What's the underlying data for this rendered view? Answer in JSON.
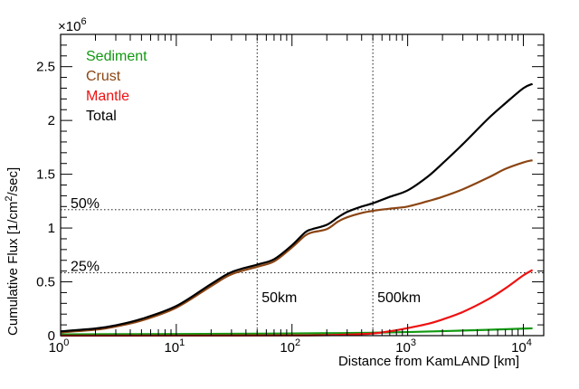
{
  "chart_data": {
    "type": "line",
    "title": "",
    "xlabel": "Distance from KamLAND [km]",
    "ylabel": "Cumulative Flux [1/cm²/sec]",
    "ylabel_main": "Cumulative Flux [1/cm",
    "ylabel_sup": "2",
    "ylabel_end": "/sec]",
    "y_multiplier": {
      "base": "×10",
      "exp": "6"
    },
    "x_scale": "log",
    "xlim": [
      1,
      15000
    ],
    "ylim": [
      0,
      2.8
    ],
    "x_ticks": [
      {
        "value": 1,
        "base": "10",
        "exp": "0"
      },
      {
        "value": 10,
        "base": "10",
        "exp": "1"
      },
      {
        "value": 100,
        "base": "10",
        "exp": "2"
      },
      {
        "value": 1000,
        "base": "10",
        "exp": "3"
      },
      {
        "value": 10000,
        "base": "10",
        "exp": "4"
      }
    ],
    "y_ticks": [
      {
        "value": 0,
        "label": "0"
      },
      {
        "value": 0.5,
        "label": "0.5"
      },
      {
        "value": 1,
        "label": "1"
      },
      {
        "value": 1.5,
        "label": "1.5"
      },
      {
        "value": 2,
        "label": "2"
      },
      {
        "value": 2.5,
        "label": "2.5"
      }
    ],
    "legend_position": "top-left",
    "series": [
      {
        "name": "Sediment",
        "color": "#119911",
        "x": [
          1,
          10,
          50,
          100,
          300,
          500,
          1000,
          3000,
          10000,
          12000
        ],
        "y": [
          0.012,
          0.015,
          0.018,
          0.02,
          0.024,
          0.027,
          0.033,
          0.047,
          0.065,
          0.068
        ]
      },
      {
        "name": "Crust",
        "color": "#8b4513",
        "x": [
          1,
          2,
          3,
          5,
          10,
          20,
          30,
          50,
          70,
          100,
          130,
          150,
          200,
          250,
          300,
          400,
          500,
          700,
          1000,
          1500,
          2000,
          3000,
          5000,
          7000,
          10000,
          12000
        ],
        "y": [
          0.03,
          0.055,
          0.085,
          0.14,
          0.26,
          0.46,
          0.57,
          0.64,
          0.69,
          0.82,
          0.93,
          0.96,
          0.99,
          1.06,
          1.1,
          1.14,
          1.16,
          1.18,
          1.2,
          1.25,
          1.29,
          1.36,
          1.47,
          1.55,
          1.61,
          1.63
        ]
      },
      {
        "name": "Mantle",
        "color": "#ee1111",
        "x": [
          1,
          100,
          300,
          500,
          700,
          1000,
          1500,
          2000,
          3000,
          5000,
          7000,
          10000,
          12000
        ],
        "y": [
          0.0,
          0.002,
          0.01,
          0.02,
          0.04,
          0.07,
          0.11,
          0.15,
          0.22,
          0.34,
          0.44,
          0.56,
          0.61
        ]
      },
      {
        "name": "Total",
        "color": "#000000",
        "x": [
          1,
          2,
          3,
          5,
          10,
          20,
          30,
          50,
          70,
          100,
          130,
          150,
          200,
          250,
          300,
          400,
          500,
          700,
          1000,
          1500,
          2000,
          3000,
          5000,
          7000,
          10000,
          12000
        ],
        "y": [
          0.04,
          0.066,
          0.096,
          0.155,
          0.275,
          0.48,
          0.59,
          0.66,
          0.71,
          0.84,
          0.96,
          0.99,
          1.03,
          1.1,
          1.15,
          1.2,
          1.23,
          1.29,
          1.35,
          1.48,
          1.6,
          1.78,
          2.02,
          2.16,
          2.3,
          2.34
        ]
      }
    ],
    "annotations": [
      {
        "text": "50%",
        "y": 1.17
      },
      {
        "text": "25%",
        "y": 0.585
      },
      {
        "text": "50km",
        "x": 50
      },
      {
        "text": "500km",
        "x": 500
      }
    ]
  }
}
